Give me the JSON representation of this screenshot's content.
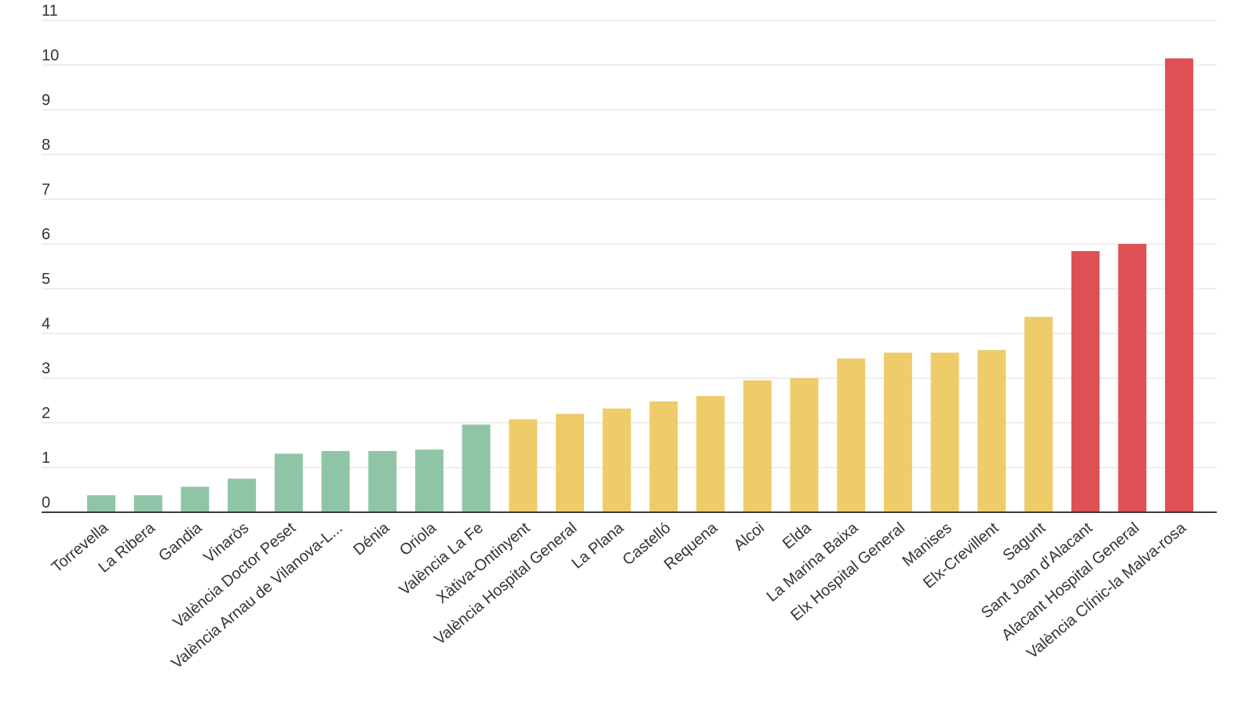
{
  "chart_data": {
    "type": "bar",
    "title": "",
    "xlabel": "",
    "ylabel": "",
    "ylim": [
      0,
      11
    ],
    "yticks": [
      0,
      1,
      2,
      3,
      4,
      5,
      6,
      7,
      8,
      9,
      10,
      11
    ],
    "grid": true,
    "categories": [
      "Torrevella",
      "La Ribera",
      "Gandia",
      "Vinaròs",
      "València Doctor Peset",
      "València Arnau de Vilanova-L...",
      "Dénia",
      "Oriola",
      "València La Fe",
      "Xàtiva-Ontinyent",
      "València Hospital General",
      "La Plana",
      "Castelló",
      "Requena",
      "Alcoi",
      "Elda",
      "La Marina Baixa",
      "Elx Hospital General",
      "Manises",
      "Elx-Crevillent",
      "Sagunt",
      "Sant Joan d'Alacant",
      "Alacant Hospital General",
      "València Clínic-la Malva-rosa"
    ],
    "values": [
      0.38,
      0.38,
      0.57,
      0.75,
      1.31,
      1.37,
      1.37,
      1.4,
      1.96,
      2.08,
      2.2,
      2.32,
      2.48,
      2.6,
      2.95,
      3.0,
      3.44,
      3.57,
      3.57,
      3.63,
      4.37,
      5.84,
      6.0,
      10.15
    ],
    "bar_colors": [
      "#8fc4a7",
      "#8fc4a7",
      "#8fc4a7",
      "#8fc4a7",
      "#8fc4a7",
      "#8fc4a7",
      "#8fc4a7",
      "#8fc4a7",
      "#8fc4a7",
      "#efcc6a",
      "#efcc6a",
      "#efcc6a",
      "#efcc6a",
      "#efcc6a",
      "#efcc6a",
      "#efcc6a",
      "#efcc6a",
      "#efcc6a",
      "#efcc6a",
      "#efcc6a",
      "#efcc6a",
      "#dd5054",
      "#dd5054",
      "#dd5054"
    ]
  },
  "colors": {
    "green": "#8fc4a7",
    "yellow": "#efcc6a",
    "red": "#dd5054",
    "grid": "#dcdcdc",
    "axis": "#3a3a3a",
    "text": "#333333"
  }
}
